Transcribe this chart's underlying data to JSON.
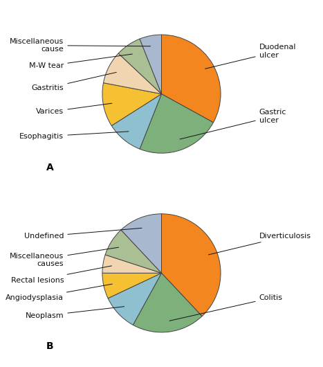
{
  "chart_A": {
    "labels": [
      "Duodenal\nulcer",
      "Gastric\nulcer",
      "Esophagitis",
      "Varices",
      "Gastritis",
      "M-W tear",
      "Miscellaneous\ncause"
    ],
    "sizes": [
      33,
      23,
      10,
      12,
      9,
      7,
      6
    ],
    "colors": [
      "#F4861F",
      "#7DB07A",
      "#8FC0D0",
      "#F5C132",
      "#F0D5B0",
      "#AABF94",
      "#A8B8CE"
    ],
    "startangle": 90,
    "label": "A"
  },
  "chart_B": {
    "labels": [
      "Diverticulosis",
      "Colitis",
      "Neoplasm",
      "Angiodysplasia",
      "Rectal lesions",
      "Miscellaneous\ncauses",
      "Undefined"
    ],
    "sizes": [
      38,
      20,
      10,
      7,
      5,
      8,
      12
    ],
    "colors": [
      "#F4861F",
      "#7DB07A",
      "#8FC0D0",
      "#F5C132",
      "#F0D5B0",
      "#AABF94",
      "#A8B8CE"
    ],
    "startangle": 90,
    "label": "B"
  },
  "figure_bg": "#ffffff",
  "pie_edge_color": "#444444",
  "pie_linewidth": 0.7,
  "label_fontsize": 8,
  "label_fontcolor": "#111111",
  "annotation_color": "#111111",
  "fig_label_fontsize": 10,
  "arrow_lw": 0.7
}
